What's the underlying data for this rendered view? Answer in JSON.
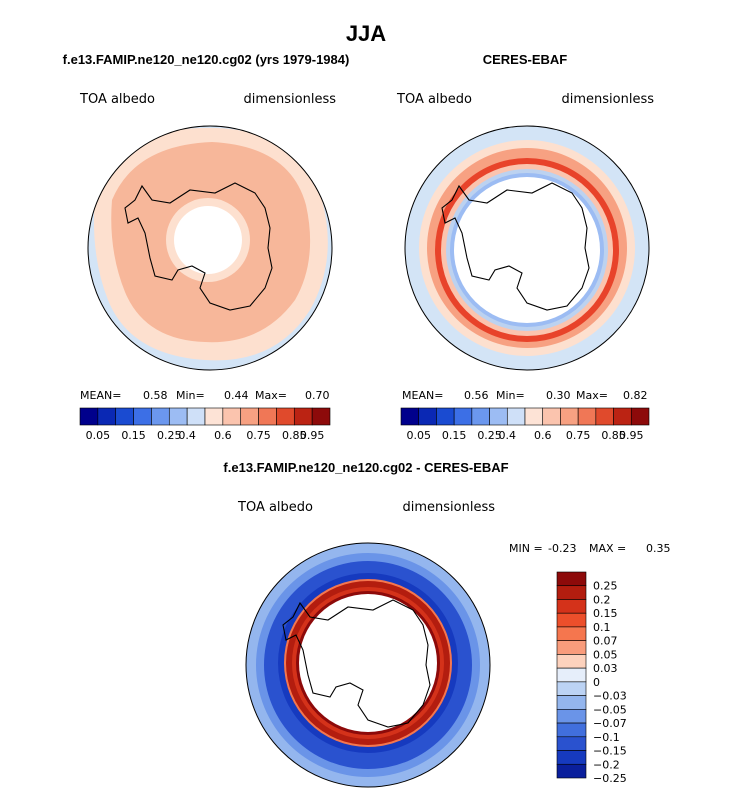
{
  "page_title": "JJA",
  "colors": {
    "model_ring": "#f7b79a",
    "model_ring_inner": "#fde0cf",
    "ocean_light": "#d3e4f6",
    "ceres_outer_ring": "#e8432a",
    "ceres_blue_ring": "#bcd2f0",
    "diff_pos": "#b7220e",
    "diff_neg": "#2a5ed1"
  },
  "chart_data": [
    {
      "type": "polar-map",
      "title": "f.e13.FAMIP.ne120_ne120.cg02 (yrs 1979-1984)",
      "left_label": "TOA albedo",
      "right_label": "dimensionless",
      "stats": {
        "mean_label": "MEAN=",
        "mean": "0.58",
        "min_label": "Min=",
        "min": "0.44",
        "max_label": "Max=",
        "max": "0.70"
      },
      "colorbar": {
        "colors": [
          "#00008c",
          "#0a28b4",
          "#1a4bd1",
          "#3c6fe6",
          "#6b97ee",
          "#9cbcf3",
          "#cfe0f8",
          "#fde3d6",
          "#fbc4ae",
          "#f7a182",
          "#f07756",
          "#e04a2c",
          "#bb2313",
          "#8d0a0a"
        ],
        "tick_labels": [
          "0.05",
          "0.15",
          "0.25",
          "0.4",
          "0.6",
          "0.75",
          "0.85",
          "0.95"
        ]
      }
    },
    {
      "type": "polar-map",
      "title": "CERES-EBAF",
      "left_label": "TOA albedo",
      "right_label": "dimensionless",
      "stats": {
        "mean_label": "MEAN=",
        "mean": "0.56",
        "min_label": "Min=",
        "min": "0.30",
        "max_label": "Max=",
        "max": "0.82"
      },
      "colorbar": {
        "colors": [
          "#00008c",
          "#0a28b4",
          "#1a4bd1",
          "#3c6fe6",
          "#6b97ee",
          "#9cbcf3",
          "#cfe0f8",
          "#fde3d6",
          "#fbc4ae",
          "#f7a182",
          "#f07756",
          "#e04a2c",
          "#bb2313",
          "#8d0a0a"
        ],
        "tick_labels": [
          "0.05",
          "0.15",
          "0.25",
          "0.4",
          "0.6",
          "0.75",
          "0.85",
          "0.95"
        ]
      }
    },
    {
      "type": "polar-map",
      "title": "f.e13.FAMIP.ne120_ne120.cg02 - CERES-EBAF",
      "left_label": "TOA albedo",
      "right_label": "dimensionless",
      "stats": {
        "min_label": "MIN =",
        "min": "-0.23",
        "max_label": "MAX =",
        "max": "0.35"
      },
      "colorbar": {
        "orientation": "vertical",
        "colors": [
          "#8d0a0a",
          "#b31d0f",
          "#d4321a",
          "#ec4f2b",
          "#f5764e",
          "#f99c7c",
          "#fdd2bd",
          "#e6eefa",
          "#bcd3f4",
          "#94b6ee",
          "#6a94e8",
          "#416fdd",
          "#2a52cf",
          "#163abf",
          "#0a1f9c"
        ],
        "tick_labels": [
          "0.25",
          "0.2",
          "0.15",
          "0.1",
          "0.07",
          "0.05",
          "0.03",
          "0",
          "−0.03",
          "−0.05",
          "−0.07",
          "−0.1",
          "−0.15",
          "−0.2",
          "−0.25"
        ]
      }
    }
  ]
}
